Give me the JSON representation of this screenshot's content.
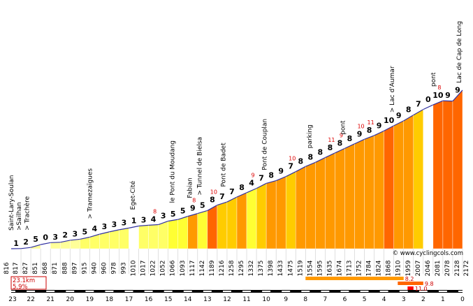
{
  "chart_data": {
    "type": "area",
    "title": "",
    "xlabel": "",
    "ylabel": "",
    "x_ticks": [
      "23",
      "22",
      "21",
      "20",
      "19",
      "18",
      "17",
      "16",
      "15",
      "14",
      "13",
      "12",
      "11",
      "10",
      "9",
      "8",
      "7",
      "6",
      "5",
      "4",
      "3",
      "2",
      "1",
      "0"
    ],
    "start_label": "816",
    "end_label": "2172",
    "km_from_end": [
      23,
      22.5,
      22,
      21.5,
      21,
      20.5,
      20,
      19.5,
      19,
      18.5,
      18,
      17.5,
      17,
      16.5,
      16,
      15.5,
      15,
      14.5,
      14,
      13.5,
      13,
      12.5,
      12,
      11.5,
      11,
      10.5,
      10,
      9.5,
      9,
      8.5,
      8,
      7.5,
      7,
      6.5,
      6,
      5.5,
      5,
      4.5,
      4,
      3.5,
      3,
      2.5,
      2,
      1.5,
      1,
      0.5
    ],
    "segment_altitudes": [
      "817",
      "827",
      "851",
      "868",
      "871",
      "888",
      "897",
      "915",
      "940",
      "960",
      "978",
      "993",
      "1010",
      "1017",
      "1022",
      "1052",
      "1066",
      "1093",
      "1117",
      "1142",
      "1189",
      "1216",
      "1258",
      "1295",
      "1332",
      "1375",
      "1398",
      "1433",
      "1475",
      "1519",
      "1554",
      "1595",
      "1635",
      "1674",
      "1713",
      "1752",
      "1784",
      "1824",
      "1868",
      "1910",
      "1959",
      "2007",
      "2046",
      "2081",
      "2078",
      "2128"
    ],
    "segment_gradients": [
      "1",
      "2",
      "5",
      "0",
      "3",
      "2",
      "3",
      "5",
      "4",
      "3",
      "3",
      "3",
      "1",
      "3",
      "4",
      "3",
      "5",
      "5",
      "9",
      "5",
      "8",
      "7",
      "7",
      "8",
      "4",
      "7",
      "8",
      "9",
      "7",
      "8",
      "8",
      "8",
      "8",
      "8",
      "8",
      "9",
      "8",
      "9",
      "10",
      "9",
      "8",
      "7",
      "0",
      "10",
      "9",
      "9"
    ],
    "segment_max_labels": [
      "",
      "",
      "",
      "",
      "",
      "",
      "",
      "",
      "",
      "",
      "",
      "",
      "",
      "",
      "8",
      "",
      "",
      "",
      "8",
      "",
      "10",
      "",
      "",
      "",
      "9",
      "",
      "",
      "",
      "10",
      "",
      "",
      "",
      "11",
      "9",
      "",
      "10",
      "11",
      "",
      "",
      "",
      "",
      "",
      "",
      "8",
      "",
      ""
    ],
    "segment_colors": [
      "#ffffff",
      "#ffffff",
      "#ffff99",
      "#ffffff",
      "#ffff99",
      "#ffff99",
      "#ffff99",
      "#ffff66",
      "#ffff66",
      "#ffff66",
      "#ffff66",
      "#ffff66",
      "#ffffff",
      "#ffff66",
      "#ffff66",
      "#ffff66",
      "#ffff33",
      "#ffff33",
      "#ff9900",
      "#ffff33",
      "#ff6600",
      "#ffcc00",
      "#ffcc00",
      "#ff9900",
      "#ffff33",
      "#ffcc00",
      "#ff9900",
      "#ff9900",
      "#ffcc00",
      "#ff9900",
      "#ff9900",
      "#ff9900",
      "#ff9900",
      "#ff9900",
      "#ff9900",
      "#ff9900",
      "#ff9900",
      "#ff9900",
      "#ff6600",
      "#ff9900",
      "#ff9900",
      "#ffcc00",
      "#ffffff",
      "#ff6600",
      "#ff6600",
      "#ff6600"
    ],
    "places": [
      {
        "label": "Saint-Lary-Soulan",
        "km_from_end": 23
      },
      {
        "label": ">Sailhan",
        "km_from_end": 22.6
      },
      {
        "label": "> Trachère",
        "km_from_end": 22.2
      },
      {
        "label": "> Tramezaïgues",
        "km_from_end": 19
      },
      {
        "label": "Eget-Cité",
        "km_from_end": 16.8
      },
      {
        "label": "le Pont du Moudang",
        "km_from_end": 14.8
      },
      {
        "label": "Fabian",
        "km_from_end": 13.9
      },
      {
        "label": "> Tunnel de Bielsa",
        "km_from_end": 13.4
      },
      {
        "label": "Pont de Badet",
        "km_from_end": 12.2
      },
      {
        "label": "Pont de Couplan",
        "km_from_end": 10.1
      },
      {
        "label": "parking",
        "km_from_end": 7.8
      },
      {
        "label": "pont",
        "km_from_end": 6.1
      },
      {
        "label": "> Lac d'Aumar",
        "km_from_end": 3.6
      },
      {
        "label": "pont",
        "km_from_end": 1.5
      },
      {
        "label": "Lac de Cap de Long",
        "km_from_end": 0
      }
    ],
    "summary": {
      "distance": "23.1km",
      "average": "5.9%"
    },
    "steep_bars": [
      {
        "label": "8.2",
        "from_km": 8,
        "to_km": 3
      },
      {
        "label": "9.8",
        "from_km": 3.3,
        "to_km": 2
      },
      {
        "label": "11.0",
        "from_km": 2.8,
        "to_km": 2.5
      }
    ],
    "source": "© www.cyclingcols.com",
    "ylim": [
      816,
      2172
    ]
  }
}
